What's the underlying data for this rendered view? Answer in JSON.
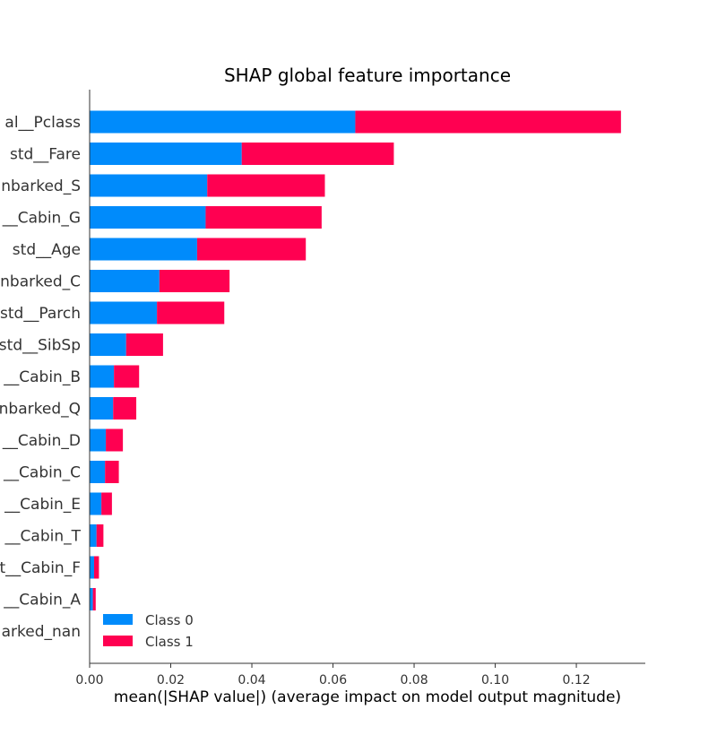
{
  "chart_data": {
    "type": "bar",
    "orientation": "horizontal",
    "stacked": true,
    "title": "SHAP global feature importance",
    "xlabel": "mean(|SHAP value|) (average impact on model output magnitude)",
    "ylabel": "",
    "xlim": [
      0,
      0.137
    ],
    "xticks": [
      "0.00",
      "0.02",
      "0.04",
      "0.06",
      "0.08",
      "0.10",
      "0.12"
    ],
    "categories": [
      "al__Pclass",
      "std__Fare",
      "nbarked_S",
      "__Cabin_G",
      "std__Age",
      "nbarked_C",
      "std__Parch",
      "std__SibSp",
      "__Cabin_B",
      "nbarked_Q",
      "__Cabin_D",
      "__Cabin_C",
      "__Cabin_E",
      "__Cabin_T",
      "t__Cabin_F",
      "__Cabin_A",
      "arked_nan"
    ],
    "series": [
      {
        "name": "Class 0",
        "color": "#008bfb",
        "values": [
          0.0655,
          0.0375,
          0.029,
          0.0286,
          0.0265,
          0.0172,
          0.0166,
          0.009,
          0.006,
          0.0058,
          0.004,
          0.0038,
          0.0029,
          0.0017,
          0.0011,
          0.0008,
          0.0
        ]
      },
      {
        "name": "Class 1",
        "color": "#ff0051",
        "values": [
          0.0655,
          0.0375,
          0.029,
          0.0286,
          0.0268,
          0.0173,
          0.0166,
          0.0091,
          0.0062,
          0.0057,
          0.0042,
          0.0034,
          0.0026,
          0.0017,
          0.0012,
          0.0007,
          0.0
        ]
      }
    ],
    "legend": {
      "position": "lower-center",
      "entries": [
        "Class 0",
        "Class 1"
      ]
    },
    "grid": false
  }
}
